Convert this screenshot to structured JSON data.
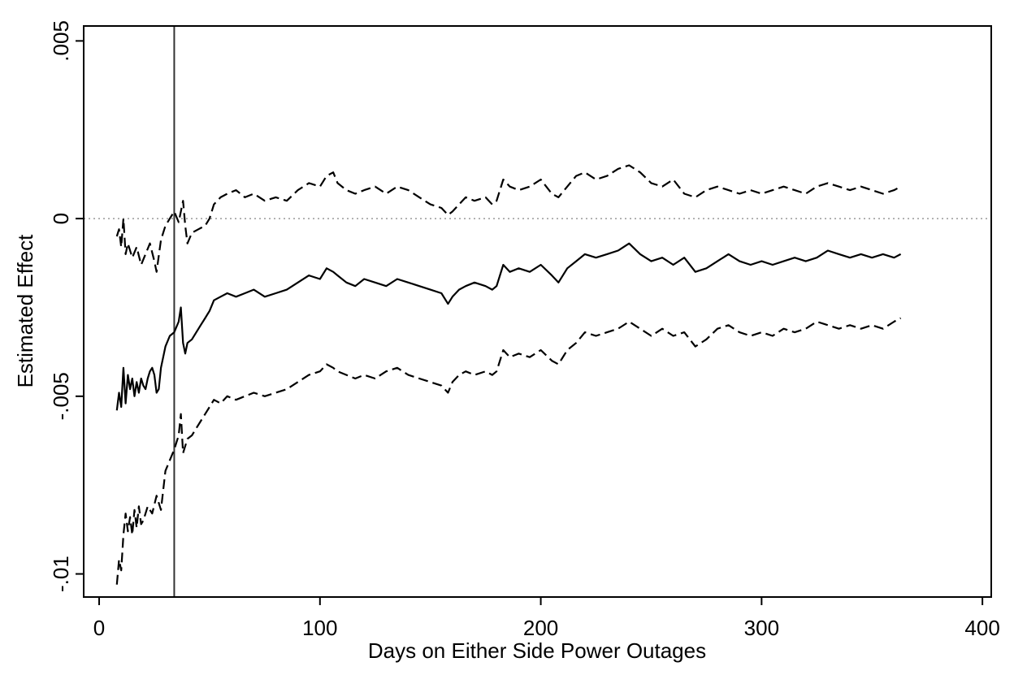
{
  "chart_data": {
    "type": "line",
    "xlabel": "Days on Either Side Power Outages",
    "ylabel": "Estimated Effect",
    "xlim": [
      -7,
      404
    ],
    "ylim": [
      -0.01065,
      0.00542
    ],
    "x_ticks": [
      {
        "value": 0,
        "label": "0"
      },
      {
        "value": 100,
        "label": "100"
      },
      {
        "value": 200,
        "label": "200"
      },
      {
        "value": 300,
        "label": "300"
      },
      {
        "value": 400,
        "label": "400"
      }
    ],
    "y_ticks": [
      {
        "value": -0.01,
        "label": "-.01"
      },
      {
        "value": -0.005,
        "label": "-.005"
      },
      {
        "value": 0,
        "label": "0"
      },
      {
        "value": 0.005,
        "label": ".005"
      }
    ],
    "reference_lines": {
      "horizontal_y": 0,
      "horizontal_style": "dotted",
      "vertical_x": 34,
      "vertical_style": "solid"
    },
    "grid": false,
    "legend": "none",
    "colors": {
      "series": "#000000",
      "frame": "#000000",
      "reference": "#999999"
    },
    "series": [
      {
        "style": "dashed",
        "role": "upper",
        "x": [
          8,
          9,
          10,
          11,
          12,
          13,
          15,
          17,
          19,
          21,
          23,
          25,
          26,
          28,
          30,
          32,
          34,
          36,
          38,
          39,
          40,
          42,
          45,
          48,
          50,
          52,
          55,
          58,
          62,
          66,
          70,
          75,
          80,
          85,
          90,
          95,
          100,
          103,
          106,
          108,
          112,
          116,
          120,
          125,
          130,
          135,
          140,
          145,
          150,
          155,
          158,
          160,
          163,
          166,
          170,
          175,
          178,
          180,
          183,
          186,
          190,
          195,
          200,
          205,
          208,
          212,
          216,
          220,
          225,
          230,
          235,
          240,
          245,
          250,
          255,
          260,
          265,
          270,
          275,
          280,
          285,
          290,
          295,
          300,
          305,
          310,
          315,
          320,
          325,
          330,
          335,
          340,
          345,
          350,
          355,
          360,
          363
        ],
        "y": [
          -0.0005,
          -0.0003,
          -0.0008,
          0.0,
          -0.001,
          -0.0007,
          -0.0011,
          -0.0008,
          -0.0013,
          -0.001,
          -0.0007,
          -0.0012,
          -0.0015,
          -0.0006,
          -0.0002,
          0.0,
          0.0002,
          -0.0001,
          0.0005,
          -0.0002,
          -0.0007,
          -0.0004,
          -0.0003,
          -0.0002,
          0.0,
          0.0004,
          0.0006,
          0.0007,
          0.0008,
          0.0006,
          0.0007,
          0.0005,
          0.0006,
          0.0005,
          0.0008,
          0.001,
          0.0009,
          0.0012,
          0.0013,
          0.001,
          0.0008,
          0.0007,
          0.0008,
          0.0009,
          0.0007,
          0.0009,
          0.0008,
          0.0006,
          0.0004,
          0.0003,
          0.0001,
          0.0002,
          0.0004,
          0.0006,
          0.0005,
          0.0006,
          0.0004,
          0.0005,
          0.0011,
          0.0009,
          0.0008,
          0.0009,
          0.0011,
          0.0007,
          0.0006,
          0.0009,
          0.0012,
          0.0013,
          0.0011,
          0.0012,
          0.0014,
          0.0015,
          0.0013,
          0.001,
          0.0009,
          0.0011,
          0.0007,
          0.0006,
          0.0008,
          0.0009,
          0.0008,
          0.0007,
          0.0008,
          0.0007,
          0.0008,
          0.0009,
          0.0008,
          0.0007,
          0.0009,
          0.001,
          0.0009,
          0.0008,
          0.0009,
          0.0008,
          0.0007,
          0.0008,
          0.0009
        ]
      },
      {
        "style": "solid",
        "role": "estimate",
        "x": [
          8,
          9,
          10,
          11,
          12,
          13,
          14,
          15,
          16,
          17,
          18,
          19,
          20,
          21,
          22,
          23,
          24,
          25,
          26,
          27,
          28,
          30,
          32,
          34,
          36,
          37,
          38,
          39,
          40,
          42,
          44,
          46,
          48,
          50,
          52,
          55,
          58,
          62,
          66,
          70,
          75,
          80,
          85,
          90,
          95,
          100,
          103,
          106,
          108,
          112,
          116,
          120,
          125,
          130,
          135,
          140,
          145,
          150,
          155,
          158,
          160,
          163,
          166,
          170,
          175,
          178,
          180,
          183,
          186,
          190,
          195,
          200,
          205,
          208,
          212,
          216,
          220,
          225,
          230,
          235,
          240,
          245,
          250,
          255,
          260,
          265,
          270,
          275,
          280,
          285,
          290,
          295,
          300,
          305,
          310,
          315,
          320,
          325,
          330,
          335,
          340,
          345,
          350,
          355,
          360,
          363
        ],
        "y": [
          -0.0054,
          -0.0049,
          -0.0053,
          -0.0042,
          -0.0052,
          -0.0044,
          -0.0048,
          -0.0045,
          -0.005,
          -0.0046,
          -0.0049,
          -0.0045,
          -0.0047,
          -0.0048,
          -0.0045,
          -0.0043,
          -0.0042,
          -0.0044,
          -0.0049,
          -0.0048,
          -0.0042,
          -0.0036,
          -0.0033,
          -0.0032,
          -0.0029,
          -0.0025,
          -0.0035,
          -0.0038,
          -0.0035,
          -0.0034,
          -0.0032,
          -0.003,
          -0.0028,
          -0.0026,
          -0.0023,
          -0.0022,
          -0.0021,
          -0.0022,
          -0.0021,
          -0.002,
          -0.0022,
          -0.0021,
          -0.002,
          -0.0018,
          -0.0016,
          -0.0017,
          -0.0014,
          -0.0015,
          -0.0016,
          -0.0018,
          -0.0019,
          -0.0017,
          -0.0018,
          -0.0019,
          -0.0017,
          -0.0018,
          -0.0019,
          -0.002,
          -0.0021,
          -0.0024,
          -0.0022,
          -0.002,
          -0.0019,
          -0.0018,
          -0.0019,
          -0.002,
          -0.0019,
          -0.0013,
          -0.0015,
          -0.0014,
          -0.0015,
          -0.0013,
          -0.0016,
          -0.0018,
          -0.0014,
          -0.0012,
          -0.001,
          -0.0011,
          -0.001,
          -0.0009,
          -0.0007,
          -0.001,
          -0.0012,
          -0.0011,
          -0.0013,
          -0.0011,
          -0.0015,
          -0.0014,
          -0.0012,
          -0.001,
          -0.0012,
          -0.0013,
          -0.0012,
          -0.0013,
          -0.0012,
          -0.0011,
          -0.0012,
          -0.0011,
          -0.0009,
          -0.001,
          -0.0011,
          -0.001,
          -0.0011,
          -0.001,
          -0.0011,
          -0.001
        ]
      },
      {
        "style": "dashed",
        "role": "lower",
        "x": [
          8,
          9,
          10,
          11,
          12,
          13,
          14,
          15,
          16,
          17,
          18,
          19,
          20,
          22,
          24,
          26,
          28,
          30,
          32,
          34,
          36,
          37,
          38,
          39,
          40,
          42,
          44,
          46,
          48,
          50,
          52,
          55,
          58,
          62,
          66,
          70,
          75,
          80,
          85,
          90,
          95,
          100,
          103,
          106,
          108,
          112,
          116,
          120,
          125,
          130,
          135,
          140,
          145,
          150,
          155,
          158,
          160,
          163,
          166,
          170,
          175,
          178,
          180,
          183,
          186,
          190,
          195,
          200,
          205,
          208,
          212,
          216,
          220,
          225,
          230,
          235,
          240,
          245,
          250,
          255,
          260,
          265,
          270,
          275,
          280,
          285,
          290,
          295,
          300,
          305,
          310,
          315,
          320,
          325,
          330,
          335,
          340,
          345,
          350,
          355,
          360,
          363
        ],
        "y": [
          -0.0103,
          -0.0096,
          -0.0099,
          -0.0089,
          -0.0083,
          -0.0088,
          -0.0084,
          -0.0089,
          -0.0082,
          -0.0087,
          -0.0081,
          -0.0086,
          -0.0085,
          -0.0081,
          -0.0083,
          -0.0078,
          -0.0082,
          -0.0071,
          -0.0068,
          -0.0065,
          -0.0061,
          -0.0055,
          -0.0066,
          -0.0064,
          -0.0062,
          -0.0061,
          -0.0059,
          -0.0057,
          -0.0055,
          -0.0053,
          -0.0051,
          -0.0052,
          -0.005,
          -0.0051,
          -0.005,
          -0.0049,
          -0.005,
          -0.0049,
          -0.0048,
          -0.0046,
          -0.0044,
          -0.0043,
          -0.0041,
          -0.0042,
          -0.0043,
          -0.0044,
          -0.0045,
          -0.0044,
          -0.0045,
          -0.0043,
          -0.0042,
          -0.0044,
          -0.0045,
          -0.0046,
          -0.0047,
          -0.0049,
          -0.0046,
          -0.0044,
          -0.0043,
          -0.0044,
          -0.0043,
          -0.0044,
          -0.0043,
          -0.0037,
          -0.0039,
          -0.0038,
          -0.0039,
          -0.0037,
          -0.004,
          -0.0041,
          -0.0037,
          -0.0035,
          -0.0032,
          -0.0033,
          -0.0032,
          -0.0031,
          -0.0029,
          -0.0031,
          -0.0033,
          -0.0031,
          -0.0033,
          -0.0032,
          -0.0036,
          -0.0034,
          -0.0031,
          -0.003,
          -0.0032,
          -0.0033,
          -0.0032,
          -0.0033,
          -0.0031,
          -0.0032,
          -0.0031,
          -0.0029,
          -0.003,
          -0.0031,
          -0.003,
          -0.0031,
          -0.003,
          -0.0031,
          -0.0029,
          -0.0028
        ]
      }
    ]
  }
}
